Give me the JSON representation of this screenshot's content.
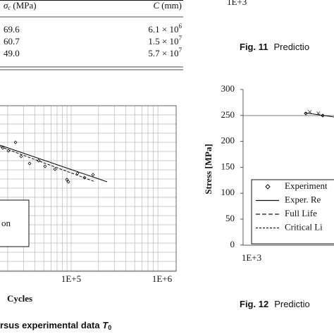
{
  "table": {
    "header": {
      "sigma_symbol": "σ",
      "sigma_sub": "c",
      "sigma_unit": "(MPa)",
      "c_header": "C",
      "c_unit": "(mm)"
    },
    "rows": [
      {
        "sigma": "69.6",
        "c_mantissa": "6.1 × 10",
        "c_exponent": "6"
      },
      {
        "sigma": "60.7",
        "c_mantissa": "1.5 × 10",
        "c_exponent": "7"
      },
      {
        "sigma": "49.0",
        "c_mantissa": "5.7 × 10",
        "c_exponent": "7"
      }
    ]
  },
  "fig11": {
    "x_label_top": "1E+3",
    "caption_label": "Fig. 11",
    "caption_text": "Predictio"
  },
  "left_figure": {
    "x_ticks": [
      "1E+5",
      "1E+6"
    ],
    "x_label": "Cycles",
    "legend_fragment": "on",
    "caption_text": "rsus experimental data ",
    "caption_symbol": "T",
    "caption_sub": "0"
  },
  "fig12": {
    "y_ticks": [
      "300",
      "250",
      "200",
      "150",
      "100",
      "50",
      "0"
    ],
    "y_label": "Stress [MPa]",
    "x_tick": "1E+3",
    "legend": [
      "Experiment",
      "Exper. Re",
      "Full Life",
      "Critical Li"
    ],
    "caption_label": "Fig. 12",
    "caption_text": "Predictio"
  }
}
